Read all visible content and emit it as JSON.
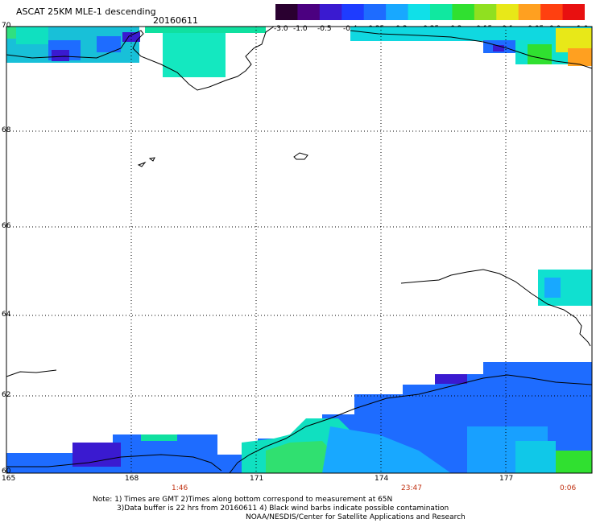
{
  "header": {
    "title": "ASCAT 25KM MLE-1 descending",
    "date": "20160611"
  },
  "colorbar": {
    "labels": [
      "-3.0",
      "-1.0",
      "-0.5",
      "-0.4",
      "-0.35",
      "-0.3",
      "-0.25",
      "-0.2",
      "-0.15",
      "-0.1",
      "-0.05",
      "0.0",
      "1.0"
    ],
    "colors": [
      "#2a0030",
      "#4b0080",
      "#3a1ad0",
      "#1e3cff",
      "#1e6cff",
      "#18a8ff",
      "#10e0e8",
      "#10e8a0",
      "#30e030",
      "#90e020",
      "#e8e818",
      "#ffa020",
      "#ff4010",
      "#e81010"
    ]
  },
  "axes": {
    "lat_labels": [
      "70",
      "68",
      "66",
      "64",
      "62",
      "60"
    ],
    "lon_labels": [
      "165",
      "168",
      "171",
      "174",
      "177"
    ]
  },
  "times": [
    {
      "label": "1:46"
    },
    {
      "label": "23:47"
    },
    {
      "label": "0:06"
    }
  ],
  "notes": {
    "line1": "Note: 1) Times are GMT 2)Times along bottom correspond to measurement at 65N",
    "line2": "3)Data buffer is 22 hrs from 20160611 4) Black wind barbs indicate possible contamination",
    "line3": "NOAA/NESDIS/Center for Satellite Applications and Research"
  },
  "colors": {
    "time_label": "#c03010",
    "grid": "#000000"
  }
}
